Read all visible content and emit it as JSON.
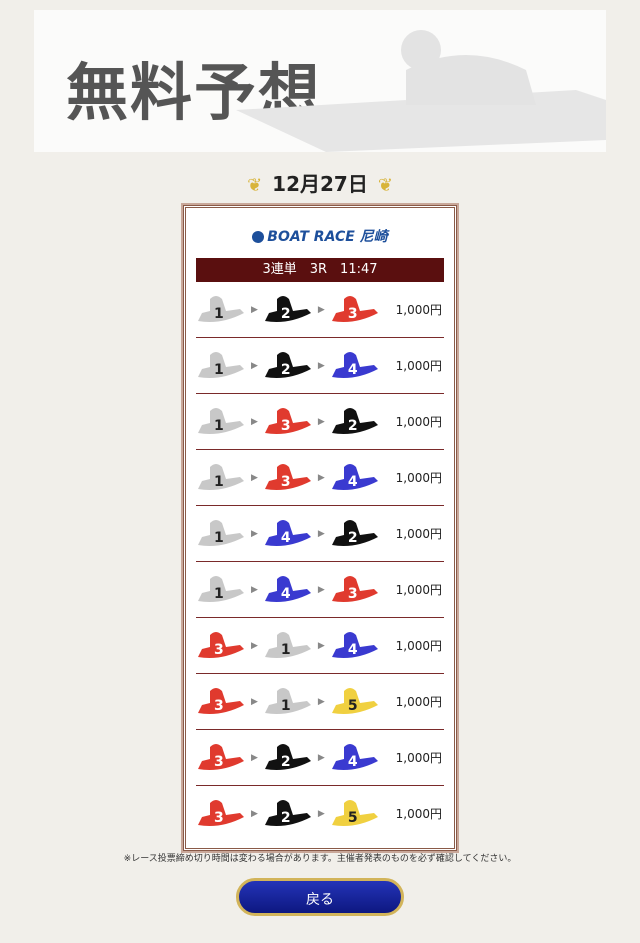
{
  "header": {
    "title": "無料予想"
  },
  "date": "12月27日",
  "card": {
    "logo": "BOAT RACE 尼崎",
    "race_info": "3連単　3R　11:47",
    "boat_colors": {
      "1": "#c8c8c8",
      "2": "#111111",
      "3": "#e03a2e",
      "4": "#3a3ad0",
      "5": "#f0d040"
    },
    "bets": [
      {
        "combo": [
          "1",
          "2",
          "3"
        ],
        "amount": "1,000円"
      },
      {
        "combo": [
          "1",
          "2",
          "4"
        ],
        "amount": "1,000円"
      },
      {
        "combo": [
          "1",
          "3",
          "2"
        ],
        "amount": "1,000円"
      },
      {
        "combo": [
          "1",
          "3",
          "4"
        ],
        "amount": "1,000円"
      },
      {
        "combo": [
          "1",
          "4",
          "2"
        ],
        "amount": "1,000円"
      },
      {
        "combo": [
          "1",
          "4",
          "3"
        ],
        "amount": "1,000円"
      },
      {
        "combo": [
          "3",
          "1",
          "4"
        ],
        "amount": "1,000円"
      },
      {
        "combo": [
          "3",
          "1",
          "5"
        ],
        "amount": "1,000円"
      },
      {
        "combo": [
          "3",
          "2",
          "4"
        ],
        "amount": "1,000円"
      },
      {
        "combo": [
          "3",
          "2",
          "5"
        ],
        "amount": "1,000円"
      }
    ]
  },
  "note": "※レース投票締め切り時間は変わる場合があります。主催者発表のものを必ず確認してください。",
  "back_label": "戻る"
}
